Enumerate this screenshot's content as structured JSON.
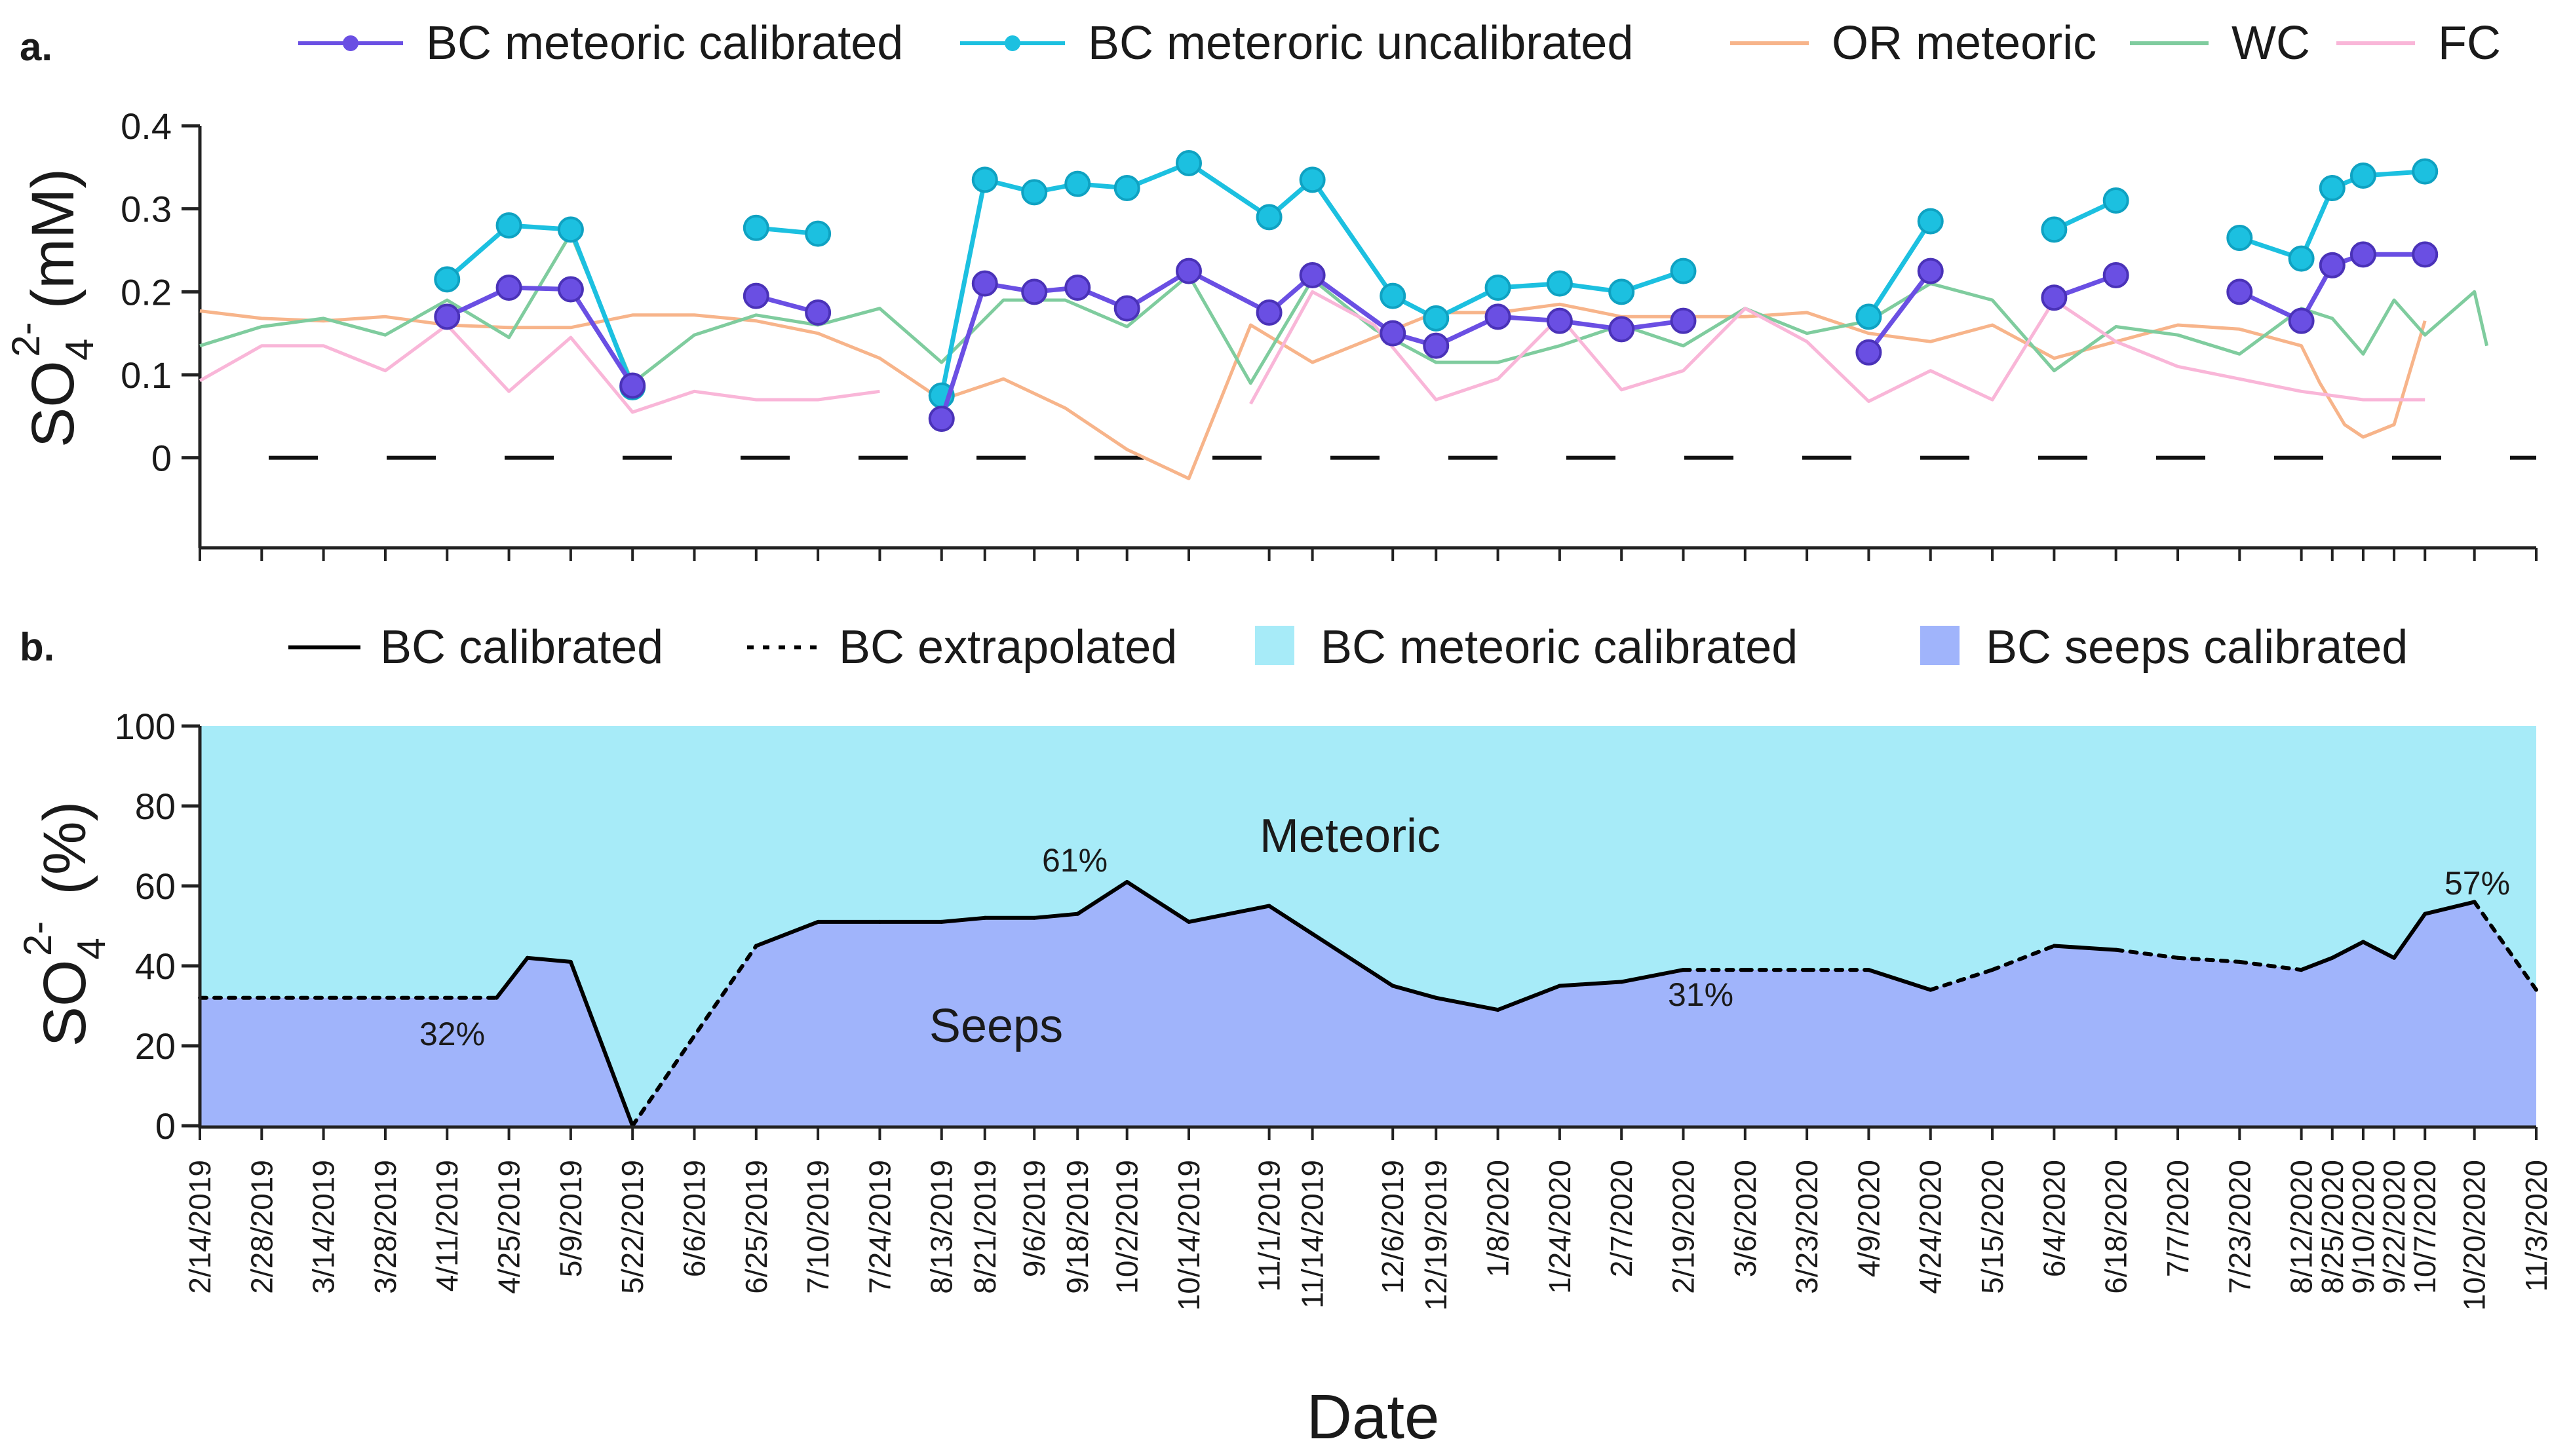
{
  "chart_data": [
    {
      "type": "line",
      "panel_label": "a.",
      "ylabel_main": "SO",
      "ylabel_sub": "4",
      "ylabel_sup": "2-",
      "ylabel_unit": "(mM)",
      "ylim": [
        -0.05,
        0.4
      ],
      "yticks": [
        0,
        0.1,
        0.2,
        0.3,
        0.4
      ],
      "ytick_labels": [
        "0",
        "0.1",
        "0.2",
        "0.3",
        "0.4"
      ],
      "legend_position": "top",
      "reference_line": {
        "y": 0,
        "style": "dashed"
      },
      "series": [
        {
          "name": "BC meteoric calibrated",
          "color": "#6a4fe3",
          "marker": true,
          "segments": [
            [
              [
                4,
                0.17
              ],
              [
                5,
                0.205
              ],
              [
                6,
                0.203
              ],
              [
                7,
                0.087
              ]
            ],
            [
              [
                9,
                0.195
              ],
              [
                10,
                0.175
              ]
            ],
            [
              [
                12,
                0.047
              ],
              [
                12.7,
                0.21
              ],
              [
                13.5,
                0.2
              ],
              [
                14.2,
                0.205
              ],
              [
                15,
                0.18
              ],
              [
                16,
                0.225
              ],
              [
                17.3,
                0.175
              ],
              [
                18,
                0.22
              ],
              [
                19.3,
                0.15
              ],
              [
                20,
                0.135
              ],
              [
                21,
                0.17
              ],
              [
                22,
                0.165
              ],
              [
                23,
                0.155
              ],
              [
                24,
                0.165
              ]
            ],
            [
              [
                27,
                0.127
              ],
              [
                28,
                0.225
              ]
            ],
            [
              [
                30,
                0.193
              ],
              [
                31,
                0.22
              ]
            ],
            [
              [
                33,
                0.2
              ],
              [
                34,
                0.165
              ],
              [
                34.5,
                0.232
              ],
              [
                35,
                0.245
              ],
              [
                36,
                0.245
              ]
            ]
          ]
        },
        {
          "name": "BC  meteroric uncalibrated",
          "color": "#1cc0e0",
          "marker": true,
          "segments": [
            [
              [
                4,
                0.215
              ],
              [
                5,
                0.28
              ],
              [
                6,
                0.275
              ],
              [
                7,
                0.085
              ]
            ],
            [
              [
                9,
                0.277
              ],
              [
                10,
                0.27
              ]
            ],
            [
              [
                12,
                0.075
              ],
              [
                12.7,
                0.335
              ],
              [
                13.5,
                0.32
              ],
              [
                14.2,
                0.33
              ],
              [
                15,
                0.325
              ],
              [
                16,
                0.355
              ],
              [
                17.3,
                0.29
              ],
              [
                18,
                0.335
              ],
              [
                19.3,
                0.195
              ],
              [
                20,
                0.168
              ],
              [
                21,
                0.205
              ],
              [
                22,
                0.21
              ],
              [
                23,
                0.2
              ],
              [
                24,
                0.225
              ]
            ],
            [
              [
                27,
                0.17
              ],
              [
                28,
                0.285
              ]
            ],
            [
              [
                30,
                0.275
              ],
              [
                31,
                0.31
              ]
            ],
            [
              [
                33,
                0.265
              ],
              [
                34,
                0.24
              ],
              [
                34.5,
                0.325
              ],
              [
                35,
                0.34
              ],
              [
                36,
                0.345
              ]
            ]
          ]
        },
        {
          "name": "OR meteoric",
          "color": "#f7b48a",
          "marker": false,
          "segments": [
            [
              [
                0,
                0.177
              ],
              [
                1,
                0.168
              ],
              [
                2,
                0.165
              ],
              [
                3,
                0.17
              ],
              [
                4,
                0.16
              ],
              [
                5,
                0.157
              ],
              [
                6,
                0.157
              ],
              [
                7,
                0.172
              ],
              [
                8,
                0.172
              ],
              [
                9,
                0.165
              ],
              [
                10,
                0.15
              ],
              [
                11,
                0.12
              ],
              [
                12,
                0.07
              ],
              [
                13,
                0.095
              ],
              [
                14,
                0.06
              ],
              [
                15,
                0.01
              ],
              [
                16,
                -0.025
              ],
              [
                17,
                0.16
              ],
              [
                18,
                0.115
              ],
              [
                19,
                0.145
              ],
              [
                20,
                0.175
              ],
              [
                21,
                0.175
              ],
              [
                22,
                0.185
              ],
              [
                23,
                0.17
              ],
              [
                24,
                0.17
              ],
              [
                25,
                0.17
              ],
              [
                26,
                0.175
              ],
              [
                27,
                0.15
              ],
              [
                28,
                0.14
              ],
              [
                29,
                0.16
              ],
              [
                30,
                0.12
              ],
              [
                31,
                0.14
              ],
              [
                32,
                0.16
              ],
              [
                33,
                0.155
              ],
              [
                34,
                0.135
              ],
              [
                34.3,
                0.09
              ],
              [
                34.7,
                0.04
              ],
              [
                35,
                0.025
              ],
              [
                35.5,
                0.04
              ],
              [
                36,
                0.165
              ]
            ]
          ]
        },
        {
          "name": "WC",
          "color": "#7fcc9e",
          "marker": false,
          "segments": [
            [
              [
                0,
                0.135
              ],
              [
                1,
                0.158
              ],
              [
                2,
                0.168
              ],
              [
                3,
                0.148
              ],
              [
                4,
                0.19
              ],
              [
                5,
                0.145
              ],
              [
                6,
                0.27
              ],
              [
                7,
                0.09
              ],
              [
                8,
                0.148
              ],
              [
                9,
                0.172
              ],
              [
                10,
                0.16
              ],
              [
                11,
                0.18
              ],
              [
                12,
                0.115
              ],
              [
                13,
                0.19
              ],
              [
                14,
                0.19
              ],
              [
                15,
                0.158
              ],
              [
                16,
                0.22
              ],
              [
                17,
                0.09
              ],
              [
                18,
                0.215
              ],
              [
                19,
                0.155
              ],
              [
                20,
                0.115
              ],
              [
                21,
                0.115
              ],
              [
                22,
                0.135
              ],
              [
                23,
                0.16
              ],
              [
                24,
                0.135
              ],
              [
                25,
                0.18
              ],
              [
                26,
                0.15
              ],
              [
                27,
                0.165
              ],
              [
                28,
                0.21
              ],
              [
                29,
                0.19
              ],
              [
                30,
                0.105
              ],
              [
                31,
                0.158
              ],
              [
                32,
                0.148
              ],
              [
                33,
                0.125
              ],
              [
                34,
                0.18
              ],
              [
                34.5,
                0.168
              ],
              [
                35,
                0.125
              ],
              [
                35.5,
                0.19
              ],
              [
                36,
                0.148
              ],
              [
                36.8,
                0.2
              ],
              [
                37,
                0.135
              ]
            ]
          ]
        },
        {
          "name": "FC",
          "color": "#f9b6d8",
          "marker": false,
          "segments": [
            [
              [
                0,
                0.093
              ],
              [
                1,
                0.135
              ],
              [
                2,
                0.135
              ],
              [
                3,
                0.105
              ],
              [
                4,
                0.16
              ],
              [
                5,
                0.08
              ],
              [
                6,
                0.145
              ],
              [
                7,
                0.055
              ],
              [
                8,
                0.08
              ],
              [
                9,
                0.07
              ],
              [
                10,
                0.07
              ],
              [
                11,
                0.08
              ]
            ],
            [
              [
                17,
                0.065
              ],
              [
                18,
                0.2
              ],
              [
                19,
                0.16
              ],
              [
                20,
                0.07
              ],
              [
                21,
                0.095
              ],
              [
                22,
                0.17
              ],
              [
                23,
                0.082
              ],
              [
                24,
                0.105
              ],
              [
                25,
                0.18
              ],
              [
                26,
                0.14
              ],
              [
                27,
                0.068
              ],
              [
                28,
                0.105
              ],
              [
                29,
                0.07
              ],
              [
                30,
                0.19
              ],
              [
                31,
                0.14
              ],
              [
                32,
                0.11
              ],
              [
                33,
                0.095
              ],
              [
                34,
                0.08
              ],
              [
                35,
                0.07
              ],
              [
                36,
                0.07
              ]
            ]
          ]
        }
      ]
    },
    {
      "type": "area",
      "panel_label": "b.",
      "ylabel_main": "SO",
      "ylabel_sub": "4",
      "ylabel_sup": "2-",
      "ylabel_unit": "(%)",
      "ylim": [
        0,
        100
      ],
      "yticks": [
        0,
        20,
        40,
        60,
        80,
        100
      ],
      "ytick_labels": [
        "0",
        "20",
        "40",
        "60",
        "80",
        "100"
      ],
      "legend_position": "top",
      "xlabel": "Date",
      "x": [
        "2/14/2019",
        "2/28/2019",
        "3/14/2019",
        "3/28/2019",
        "4/11/2019",
        "4/25/2019",
        "5/9/2019",
        "5/22/2019",
        "6/6/2019",
        "6/25/2019",
        "7/10/2019",
        "7/24/2019",
        "8/13/2019",
        "8/21/2019",
        "9/6/2019",
        "9/18/2019",
        "10/2/2019",
        "10/14/2019",
        "11/1/2019",
        "11/14/2019",
        "12/6/2019",
        "12/19/2019",
        "1/8/2020",
        "1/24/2020",
        "2/7/2020",
        "2/19/2020",
        "3/6/2020",
        "3/23/2020",
        "4/9/2020",
        "4/24/2020",
        "5/15/2020",
        "6/4/2020",
        "6/18/2020",
        "7/7/2020",
        "7/23/2020",
        "8/12/2020",
        "8/25/2020",
        "9/10/2020",
        "9/22/2020",
        "10/7/2020",
        "10/20/2020",
        "11/3/2020"
      ],
      "x_positions": [
        0,
        1,
        2,
        3,
        4,
        5,
        6,
        7,
        8,
        9,
        10,
        11,
        12,
        12.7,
        13.5,
        14.2,
        15,
        16,
        17.3,
        18,
        19.3,
        20,
        21,
        22,
        23,
        24,
        25,
        26,
        27,
        28,
        29,
        30,
        31,
        32,
        33,
        34,
        34.5,
        35,
        35.5,
        36,
        36.8,
        37.8
      ],
      "legend": [
        {
          "name": "BC calibrated",
          "style": "solid",
          "color": "#000000"
        },
        {
          "name": "BC extrapolated",
          "style": "dotted",
          "color": "#000000"
        },
        {
          "name": "BC meteoric calibrated",
          "color": "#a7ebf8"
        },
        {
          "name": "BC seeps calibrated",
          "color": "#a0b4fb"
        }
      ],
      "seeps_percent": [
        [
          0,
          32
        ],
        [
          4.8,
          32
        ],
        [
          5.3,
          42
        ],
        [
          6,
          41
        ],
        [
          7,
          0
        ],
        [
          9,
          45
        ],
        [
          10,
          51
        ],
        [
          11,
          51
        ],
        [
          12,
          51
        ],
        [
          12.7,
          52
        ],
        [
          13.5,
          52
        ],
        [
          14.2,
          53
        ],
        [
          15,
          61
        ],
        [
          16,
          51
        ],
        [
          17.3,
          55
        ],
        [
          18,
          48
        ],
        [
          19.3,
          35
        ],
        [
          20,
          32
        ],
        [
          21,
          29
        ],
        [
          22,
          35
        ],
        [
          23,
          36
        ],
        [
          24,
          39
        ],
        [
          25,
          39
        ],
        [
          26,
          39
        ],
        [
          27,
          39
        ],
        [
          28,
          34
        ],
        [
          29,
          39
        ],
        [
          30,
          45
        ],
        [
          31,
          44
        ],
        [
          32,
          42
        ],
        [
          33,
          41
        ],
        [
          34,
          39
        ],
        [
          34.5,
          42
        ],
        [
          35,
          46
        ],
        [
          35.5,
          42
        ],
        [
          36,
          53
        ],
        [
          36.8,
          56
        ],
        [
          37.8,
          34
        ]
      ],
      "dotted_spans": [
        [
          0,
          4.8
        ],
        [
          7,
          9
        ],
        [
          24,
          27
        ],
        [
          28,
          30
        ],
        [
          31,
          34
        ],
        [
          36.8,
          37.8
        ]
      ],
      "region_labels": {
        "upper": "Meteoric",
        "lower": "Seeps"
      },
      "annotations": [
        "32%",
        "61%",
        "31%",
        "57%"
      ]
    }
  ]
}
